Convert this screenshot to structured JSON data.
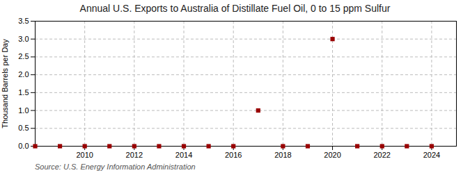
{
  "chart_data": {
    "type": "scatter",
    "title": "Annual U.S. Exports to Australia of Distillate Fuel Oil, 0 to 15 ppm Sulfur",
    "ylabel": "Thousand Barrels per Day",
    "source": "Source: U.S. Energy Information Administration",
    "x": [
      2008,
      2009,
      2010,
      2011,
      2012,
      2013,
      2014,
      2015,
      2016,
      2017,
      2018,
      2019,
      2020,
      2021,
      2022,
      2023,
      2024
    ],
    "values": [
      0.0,
      0.0,
      0.0,
      0.0,
      0.0,
      0.0,
      0.0,
      0.0,
      0.0,
      1.0,
      0.0,
      0.0,
      3.0,
      0.0,
      0.0,
      0.0,
      0.0
    ],
    "color": "#990000",
    "marker": "square",
    "grid": true,
    "xlim": [
      2008.0,
      2025.0
    ],
    "xticks": [
      2010,
      2012,
      2014,
      2016,
      2018,
      2020,
      2022,
      2024
    ],
    "ylim": [
      0,
      3.5
    ],
    "yticks": [
      {
        "value": 0.0,
        "label": "0.0"
      },
      {
        "value": 0.5,
        "label": "0.5"
      },
      {
        "value": 1.0,
        "label": "1.0"
      },
      {
        "value": 1.5,
        "label": "1.5"
      },
      {
        "value": 2.0,
        "label": "2.0"
      },
      {
        "value": 2.5,
        "label": "2.5"
      },
      {
        "value": 3.0,
        "label": "3.0"
      },
      {
        "value": 3.5,
        "label": "3.5"
      }
    ]
  }
}
